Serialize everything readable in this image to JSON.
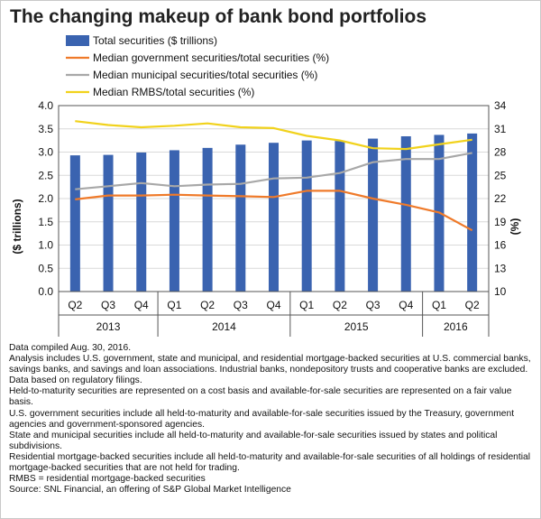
{
  "title": "The changing makeup of bank bond portfolios",
  "colors": {
    "total_securities": "#3a63b0",
    "government": "#ef7a2a",
    "municipal": "#a8a8a8",
    "rmbs": "#f1d21c",
    "grid": "#d9d9d9",
    "axis": "#555555"
  },
  "chart_data": {
    "type": "bar",
    "title": "The changing makeup of bank bond portfolios",
    "categories": [
      "Q2",
      "Q3",
      "Q4",
      "Q1",
      "Q2",
      "Q3",
      "Q4",
      "Q1",
      "Q2",
      "Q3",
      "Q4",
      "Q1",
      "Q2"
    ],
    "year_groups": [
      {
        "label": "2013",
        "count": 3
      },
      {
        "label": "2014",
        "count": 4
      },
      {
        "label": "2015",
        "count": 4
      },
      {
        "label": "2016",
        "count": 2
      }
    ],
    "ylabel": "($ trillions)",
    "ylim": [
      0,
      4.0
    ],
    "yticks": [
      "0.0",
      "0.5",
      "1.0",
      "1.5",
      "2.0",
      "2.5",
      "3.0",
      "3.5",
      "4.0"
    ],
    "y2label": "(%)",
    "y2lim": [
      10,
      34
    ],
    "y2ticks": [
      "10",
      "13",
      "16",
      "19",
      "22",
      "25",
      "28",
      "31",
      "34"
    ],
    "grid": true,
    "legend_position": "top-left",
    "series": [
      {
        "name": "Total securities ($ trillions)",
        "type": "bar",
        "axis": "left",
        "values": [
          2.93,
          2.94,
          2.99,
          3.04,
          3.09,
          3.16,
          3.2,
          3.25,
          3.24,
          3.29,
          3.34,
          3.37,
          3.4
        ]
      },
      {
        "name": "Median government securities/total securities (%)",
        "type": "line",
        "axis": "right",
        "values": [
          21.9,
          22.4,
          22.4,
          22.5,
          22.4,
          22.3,
          22.2,
          23.0,
          23.0,
          22.0,
          21.2,
          20.2,
          17.9
        ]
      },
      {
        "name": "Median municipal securities/total securities (%)",
        "type": "line",
        "axis": "right",
        "values": [
          23.2,
          23.6,
          24.0,
          23.6,
          23.8,
          23.9,
          24.6,
          24.7,
          25.3,
          26.7,
          27.1,
          27.1,
          27.9
        ]
      },
      {
        "name": "Median RMBS/total securities (%)",
        "type": "line",
        "axis": "right",
        "values": [
          32.0,
          31.5,
          31.2,
          31.4,
          31.7,
          31.2,
          31.1,
          30.1,
          29.5,
          28.5,
          28.4,
          29.0,
          29.6
        ]
      }
    ]
  },
  "notes": [
    "Data compiled Aug. 30, 2016.",
    "Analysis includes U.S. government, state and municipal, and residential mortgage-backed securities at U.S. commercial banks, savings banks, and savings and loan associations. Industrial banks, nondepository trusts and cooperative banks are excluded.",
    "Data based on regulatory filings.",
    "Held-to-maturity securities are represented on a cost basis and available-for-sale securities are represented on a fair value basis.",
    "U.S. government securities include all held-to-maturity and available-for-sale securities issued by the Treasury, government agencies and government-sponsored agencies.",
    "State and municipal securities include all held-to-maturity and available-for-sale securities issued by states and political subdivisions.",
    "Residential mortgage-backed securities include all held-to-maturity and available-for-sale securities of all holdings of residential mortgage-backed securities that are not held for trading.",
    "RMBS = residential mortgage-backed securities",
    "Source: SNL Financial, an offering of S&P Global Market Intelligence"
  ]
}
